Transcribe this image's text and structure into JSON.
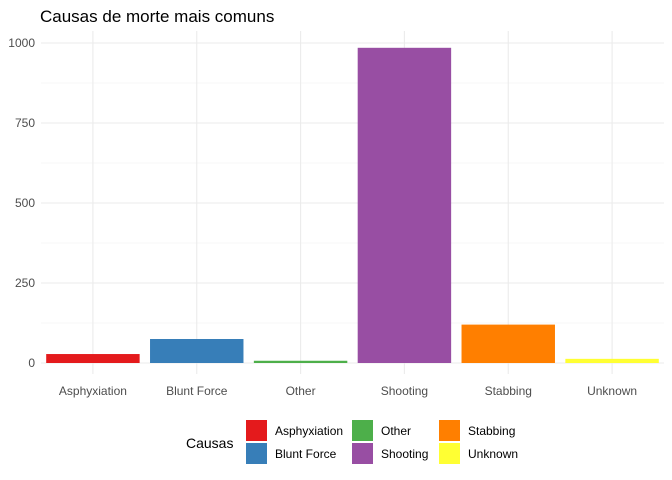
{
  "chart_data": {
    "type": "bar",
    "title": "Causas de morte mais comuns",
    "xlabel": "",
    "ylabel": "",
    "categories": [
      "Asphyxiation",
      "Blunt Force",
      "Other",
      "Shooting",
      "Stabbing",
      "Unknown"
    ],
    "values": [
      28,
      75,
      7,
      985,
      120,
      13
    ],
    "colors": [
      "#E41A1C",
      "#377EB8",
      "#4DAF4A",
      "#984EA3",
      "#FF7F00",
      "#FFFF33"
    ],
    "ylim": [
      0,
      1000
    ],
    "yticks": [
      0,
      250,
      500,
      750,
      1000
    ],
    "grid": true,
    "legend": {
      "title": "Causas",
      "placement": "bottom",
      "entries": [
        "Asphyxiation",
        "Blunt Force",
        "Other",
        "Shooting",
        "Stabbing",
        "Unknown"
      ]
    }
  }
}
